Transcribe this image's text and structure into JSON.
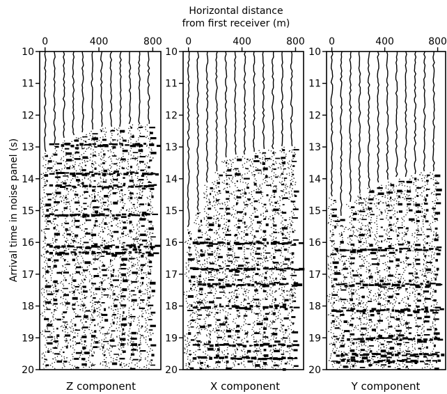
{
  "figure": {
    "top_title_line1": "Horizontal distance",
    "top_title_line2": "from first receiver (m)",
    "ylabel": "Arrival time in noise panel (s)"
  },
  "chart_data": [
    {
      "type": "line",
      "title": "Z component",
      "xlabel": "Horizontal distance from first receiver (m)",
      "ylabel": "Arrival time in noise panel (s)",
      "xlim": [
        -40,
        860
      ],
      "ylim": [
        10,
        20
      ],
      "x_ticks": [
        0,
        400,
        800
      ],
      "y_ticks": [
        10,
        11,
        12,
        13,
        14,
        15,
        16,
        17,
        18,
        19,
        20
      ],
      "y_axis_reversed": true,
      "trace_offsets_m": [
        0,
        70,
        140,
        210,
        280,
        350,
        420,
        490,
        560,
        630,
        700,
        770
      ],
      "noise_onset_s": [
        13.2,
        12.9,
        12.8,
        12.7,
        12.6,
        12.5,
        12.4,
        12.4,
        12.4,
        12.3,
        12.3,
        12.3
      ],
      "strong_events_s": [
        12.9,
        13.8,
        14.2,
        15.1,
        16.1,
        16.3
      ]
    },
    {
      "type": "line",
      "title": "X component",
      "xlabel": "Horizontal distance from first receiver (m)",
      "ylabel": "Arrival time in noise panel (s)",
      "xlim": [
        -40,
        860
      ],
      "ylim": [
        10,
        20
      ],
      "x_ticks": [
        0,
        400,
        800
      ],
      "y_ticks": [
        10,
        11,
        12,
        13,
        14,
        15,
        16,
        17,
        18,
        19,
        20
      ],
      "y_axis_reversed": true,
      "trace_offsets_m": [
        0,
        70,
        140,
        210,
        280,
        350,
        420,
        490,
        560,
        630,
        700,
        770
      ],
      "noise_onset_s": [
        15.6,
        15.0,
        14.2,
        13.8,
        13.4,
        13.3,
        13.3,
        13.2,
        13.1,
        13.1,
        13.0,
        13.0
      ],
      "strong_events_s": [
        16.0,
        16.8,
        17.3,
        18.0,
        19.2,
        19.6
      ]
    },
    {
      "type": "line",
      "title": "Y component",
      "xlabel": "Horizontal distance from first receiver (m)",
      "ylabel": "Arrival time in noise panel (s)",
      "xlim": [
        -40,
        860
      ],
      "ylim": [
        10,
        20
      ],
      "x_ticks": [
        0,
        400,
        800
      ],
      "y_ticks": [
        10,
        11,
        12,
        13,
        14,
        15,
        16,
        17,
        18,
        19,
        20
      ],
      "y_axis_reversed": true,
      "trace_offsets_m": [
        0,
        70,
        140,
        210,
        280,
        350,
        420,
        490,
        560,
        630,
        700,
        770
      ],
      "noise_onset_s": [
        14.6,
        15.2,
        14.8,
        14.5,
        14.3,
        14.2,
        14.1,
        14.0,
        14.0,
        13.9,
        13.8,
        13.8
      ],
      "strong_events_s": [
        16.2,
        17.3,
        18.1,
        19.0,
        19.5,
        19.7
      ]
    }
  ]
}
